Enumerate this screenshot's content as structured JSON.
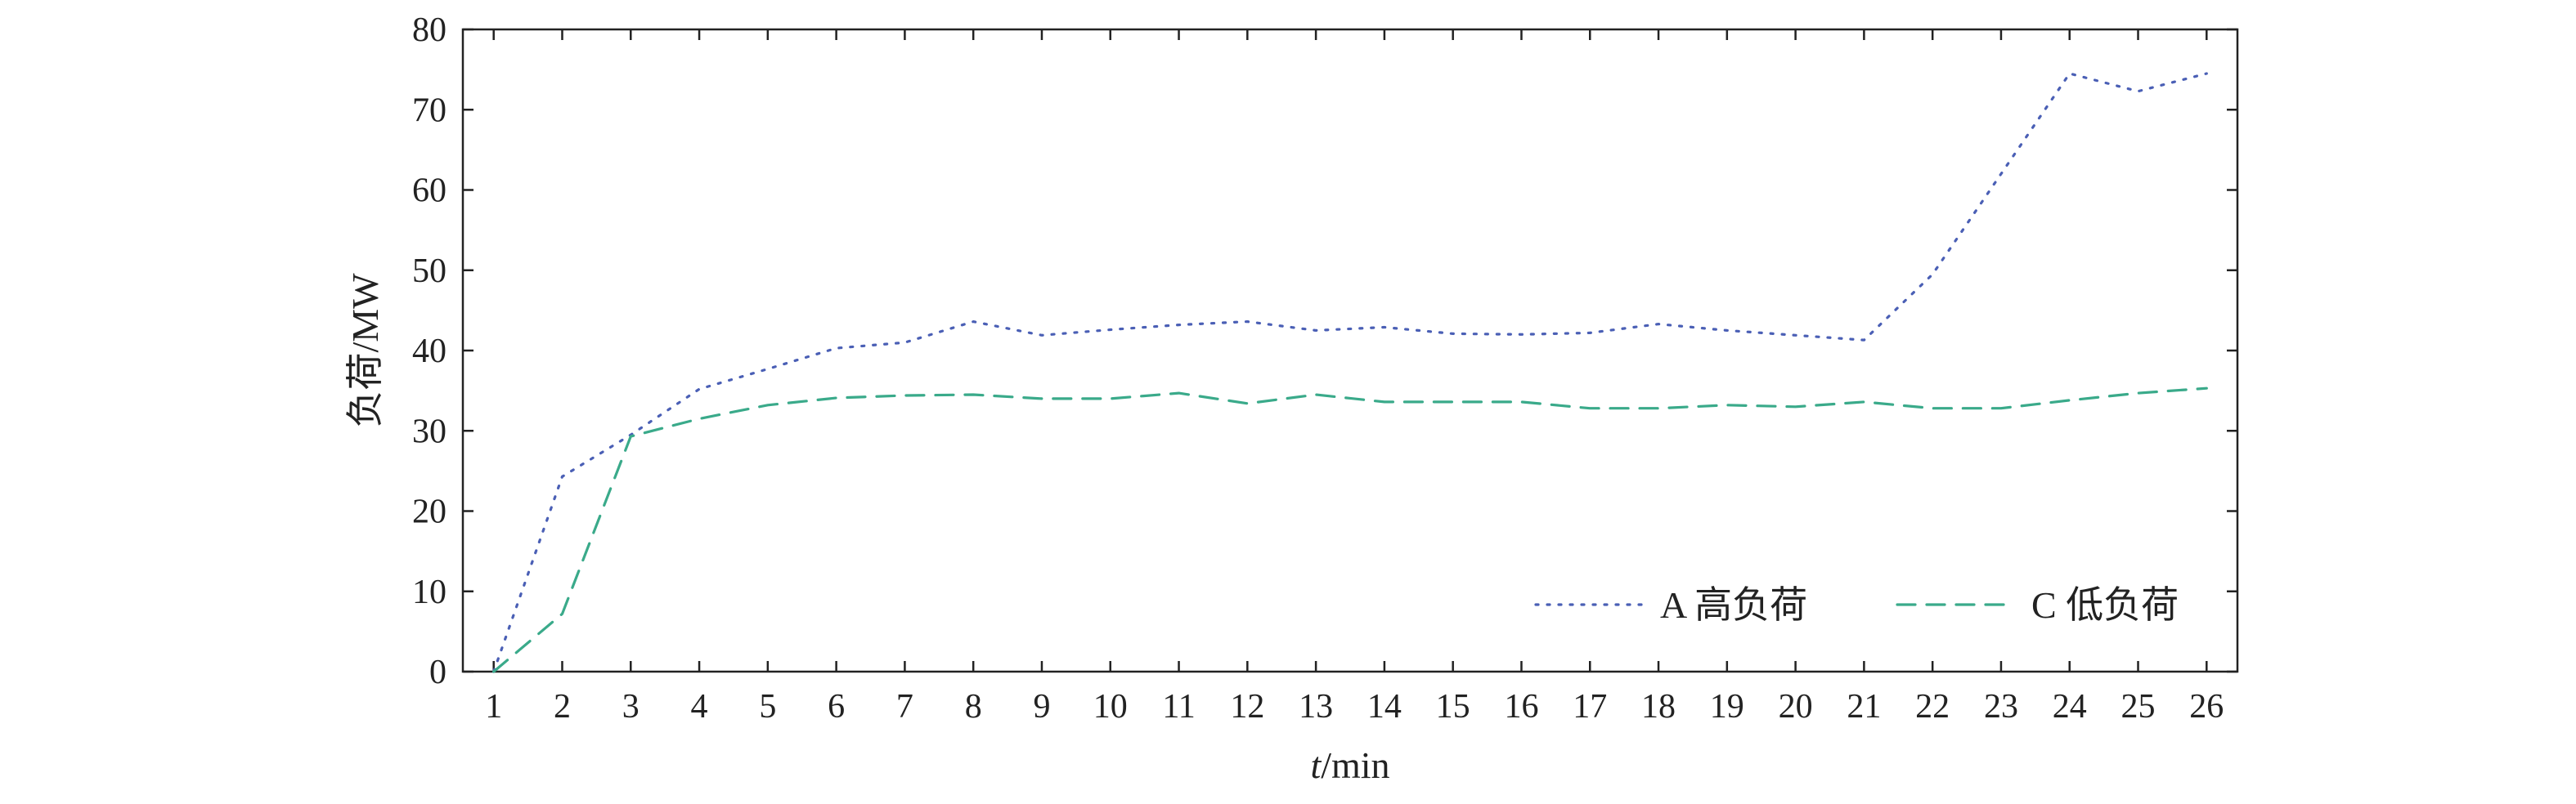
{
  "chart_data": {
    "type": "line",
    "title": "",
    "xlabel": "t/min",
    "xlabel_italic": "t",
    "xlabel_rest": "/min",
    "ylabel": "负荷/MW",
    "x": [
      1,
      2,
      3,
      4,
      5,
      6,
      7,
      8,
      9,
      10,
      11,
      12,
      13,
      14,
      15,
      16,
      17,
      18,
      19,
      20,
      21,
      22,
      23,
      24,
      25,
      26
    ],
    "xlim": [
      0.55,
      26.45
    ],
    "ylim": [
      0,
      80
    ],
    "yticks": [
      0,
      10,
      20,
      30,
      40,
      50,
      60,
      70,
      80
    ],
    "grid": false,
    "legend_position": "bottom-right",
    "series": [
      {
        "name": "A 高负荷",
        "color": "#4a5fb5",
        "style": "dotted",
        "values": [
          0,
          24.3,
          29.5,
          35.2,
          37.7,
          40.3,
          41.0,
          43.6,
          41.9,
          42.6,
          43.2,
          43.6,
          42.5,
          42.9,
          42.1,
          42.0,
          42.2,
          43.3,
          42.5,
          41.9,
          41.3,
          49.5,
          62.0,
          74.5,
          72.3,
          74.5
        ]
      },
      {
        "name": "C 低负荷",
        "color": "#3aaa8a",
        "style": "dashed",
        "values": [
          0,
          7.2,
          29.3,
          31.5,
          33.2,
          34.1,
          34.4,
          34.5,
          34.0,
          34.0,
          34.7,
          33.4,
          34.5,
          33.6,
          33.6,
          33.6,
          32.8,
          32.8,
          33.2,
          33.0,
          33.6,
          32.8,
          32.8,
          33.8,
          34.7,
          35.3
        ]
      }
    ]
  }
}
